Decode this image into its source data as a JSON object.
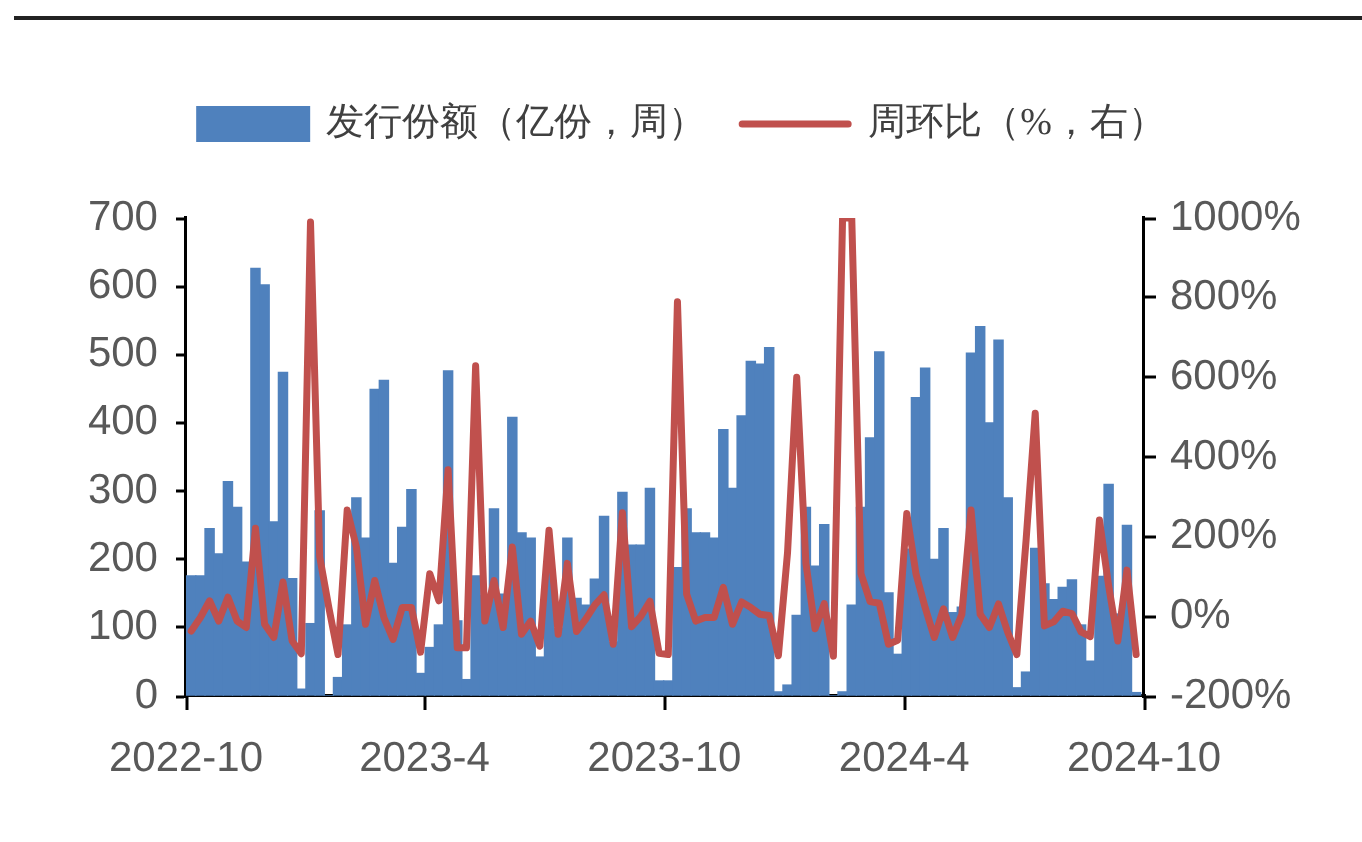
{
  "chart_data": {
    "type": "bar",
    "x": [
      "2022-10-05",
      "2022-10-12",
      "2022-10-19",
      "2022-10-26",
      "2022-11-02",
      "2022-11-09",
      "2022-11-16",
      "2022-11-23",
      "2022-11-30",
      "2022-12-07",
      "2022-12-14",
      "2022-12-21",
      "2022-12-28",
      "2023-01-04",
      "2023-01-11",
      "2023-01-18",
      "2023-01-25",
      "2023-02-01",
      "2023-02-08",
      "2023-02-15",
      "2023-02-22",
      "2023-03-01",
      "2023-03-08",
      "2023-03-15",
      "2023-03-22",
      "2023-03-29",
      "2023-04-05",
      "2023-04-12",
      "2023-04-19",
      "2023-04-26",
      "2023-05-03",
      "2023-05-10",
      "2023-05-17",
      "2023-05-24",
      "2023-05-31",
      "2023-06-07",
      "2023-06-14",
      "2023-06-21",
      "2023-06-28",
      "2023-07-05",
      "2023-07-12",
      "2023-07-19",
      "2023-07-26",
      "2023-08-02",
      "2023-08-09",
      "2023-08-16",
      "2023-08-23",
      "2023-08-30",
      "2023-09-06",
      "2023-09-13",
      "2023-09-20",
      "2023-09-27",
      "2023-10-04",
      "2023-10-11",
      "2023-10-18",
      "2023-10-25",
      "2023-11-01",
      "2023-11-08",
      "2023-11-15",
      "2023-11-22",
      "2023-11-29",
      "2023-12-06",
      "2023-12-13",
      "2023-12-20",
      "2023-12-27",
      "2024-01-03",
      "2024-01-10",
      "2024-01-17",
      "2024-01-24",
      "2024-01-31",
      "2024-02-07",
      "2024-02-14",
      "2024-02-21",
      "2024-02-28",
      "2024-03-06",
      "2024-03-13",
      "2024-03-20",
      "2024-03-27",
      "2024-04-03",
      "2024-04-10",
      "2024-04-17",
      "2024-04-24",
      "2024-05-01",
      "2024-05-08",
      "2024-05-15",
      "2024-05-22",
      "2024-05-29",
      "2024-06-05",
      "2024-06-12",
      "2024-06-19",
      "2024-06-26",
      "2024-07-03",
      "2024-07-10",
      "2024-07-17",
      "2024-07-24",
      "2024-07-31",
      "2024-08-07",
      "2024-08-14",
      "2024-08-21",
      "2024-08-28",
      "2024-09-04",
      "2024-09-11",
      "2024-09-18",
      "2024-09-25"
    ],
    "series": [
      {
        "name": "发行份额（亿份，周）",
        "color": "#4f81bd",
        "values": [
          176,
          176,
          245,
          208,
          314,
          276,
          196,
          626,
          602,
          255,
          474,
          172,
          10,
          106,
          271,
          0,
          27,
          104,
          290,
          231,
          449,
          462,
          194,
          247,
          302,
          33,
          71,
          104,
          476,
          110,
          24,
          176,
          147,
          274,
          149,
          408,
          239,
          231,
          57,
          180,
          99,
          231,
          143,
          133,
          171,
          263,
          79,
          298,
          221,
          221,
          304,
          22,
          22,
          188,
          274,
          239,
          239,
          231,
          390,
          304,
          410,
          490,
          486,
          510,
          6,
          16,
          118,
          276,
          190,
          251,
          0,
          6,
          133,
          276,
          378,
          504,
          151,
          61,
          215,
          437,
          480,
          200,
          245,
          122,
          130,
          502,
          541,
          400,
          521,
          290,
          12,
          35,
          216,
          164,
          141,
          159,
          170,
          104,
          51,
          175,
          310,
          120,
          250,
          5
        ]
      },
      {
        "name": "周环比（%，右）",
        "type": "line",
        "axis": "y2",
        "color": "#c0504d",
        "values": [
          -37,
          -3,
          39,
          -12,
          48,
          -12,
          -28,
          221,
          -20,
          -53,
          86,
          -62,
          -94,
          990,
          150,
          22,
          -96,
          267,
          174,
          -20,
          90,
          -3,
          -58,
          22,
          22,
          -90,
          107,
          39,
          368,
          -79,
          -79,
          629,
          -12,
          90,
          -28,
          174,
          -45,
          -12,
          -75,
          216,
          -45,
          133,
          -38,
          -7,
          29,
          54,
          -70,
          260,
          -26,
          0,
          38,
          -93,
          -96,
          790,
          56,
          -12,
          -3,
          -3,
          73,
          -20,
          36,
          22,
          5,
          2,
          -99,
          160,
          600,
          134,
          -31,
          32,
          -100,
          1000,
          1000,
          107,
          37,
          33,
          -70,
          -60,
          258,
          107,
          22,
          -53,
          19,
          -53,
          5,
          267,
          5,
          -28,
          31,
          -40,
          -96,
          190,
          510,
          -24,
          -14,
          13,
          7,
          -39,
          -51,
          242,
          77,
          -62,
          116,
          -96
        ]
      }
    ],
    "xlim": [
      "2022-10",
      "2024-10"
    ],
    "xticks": [
      "2022-10",
      {
        "value": "2023-04",
        "label": "2023-4"
      },
      "2023-10",
      {
        "value": "2024-04",
        "label": "2024-4"
      },
      "2024-10"
    ],
    "ylim": [
      0,
      700
    ],
    "yticks": [
      0,
      100,
      200,
      300,
      400,
      500,
      600,
      700
    ],
    "y2lim": [
      -200,
      1000
    ],
    "y2ticks": [
      {
        "value": -200,
        "label": "-200%"
      },
      {
        "value": 0,
        "label": "0%"
      },
      {
        "value": 200,
        "label": "200%"
      },
      {
        "value": 400,
        "label": "400%"
      },
      {
        "value": 600,
        "label": "600%"
      },
      {
        "value": 800,
        "label": "800%"
      },
      {
        "value": 1000,
        "label": "1000%"
      }
    ],
    "grid": false,
    "legend": "top"
  }
}
